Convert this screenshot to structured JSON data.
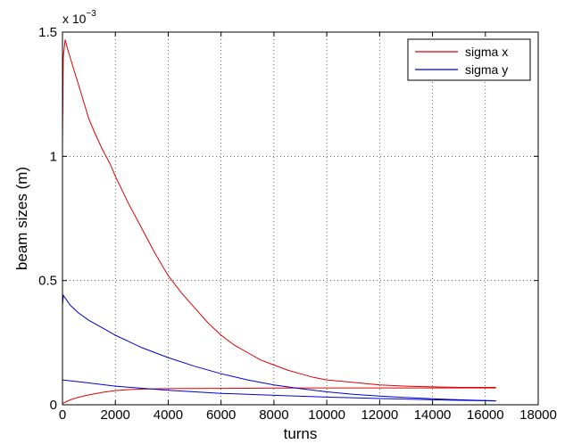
{
  "chart_data": {
    "type": "line",
    "xlabel": "turns",
    "ylabel": "beam sizes (m)",
    "y_exponent_label": "x 10",
    "y_exponent_power": "−3",
    "xlim": [
      0,
      18000
    ],
    "ylim": [
      0,
      1.5
    ],
    "x_ticks": [
      0,
      2000,
      4000,
      6000,
      8000,
      10000,
      12000,
      14000,
      16000,
      18000
    ],
    "x_tick_labels": [
      "0",
      "2000",
      "4000",
      "6000",
      "8000",
      "10000",
      "12000",
      "14000",
      "16000",
      "18000"
    ],
    "y_ticks": [
      0,
      0.5,
      1,
      1.5
    ],
    "y_tick_labels": [
      "0",
      "0.5",
      "1",
      "1.5"
    ],
    "grid": true,
    "legend_position": "top-right",
    "legend": [
      "sigma x",
      "sigma y"
    ],
    "series": [
      {
        "name": "sigma x",
        "color": "#e00000",
        "x": [
          0,
          30,
          100,
          200,
          400,
          600,
          800,
          1000,
          1200,
          1500,
          1800,
          2000,
          2500,
          3000,
          3500,
          4000,
          4500,
          5000,
          5500,
          6000,
          6500,
          7000,
          7500,
          8000,
          8500,
          9000,
          9500,
          10000,
          11000,
          12000,
          13000,
          14000,
          15000,
          16000,
          16400
        ],
        "y": [
          1.05,
          1.4,
          1.47,
          1.43,
          1.36,
          1.29,
          1.22,
          1.15,
          1.1,
          1.03,
          0.97,
          0.92,
          0.81,
          0.71,
          0.61,
          0.52,
          0.45,
          0.39,
          0.33,
          0.28,
          0.24,
          0.21,
          0.18,
          0.16,
          0.14,
          0.125,
          0.11,
          0.1,
          0.09,
          0.08,
          0.075,
          0.072,
          0.07,
          0.07,
          0.07
        ]
      },
      {
        "name": "sigma x",
        "color": "#e00000",
        "x": [
          0,
          300,
          600,
          1000,
          1500,
          2000,
          2500,
          3000,
          4000,
          6000,
          8000,
          10000,
          12000,
          14000,
          16400
        ],
        "y": [
          0.005,
          0.02,
          0.03,
          0.04,
          0.05,
          0.057,
          0.061,
          0.063,
          0.065,
          0.066,
          0.067,
          0.068,
          0.068,
          0.068,
          0.068
        ]
      },
      {
        "name": "sigma y",
        "color": "#0000d8",
        "x": [
          0,
          30,
          100,
          300,
          600,
          1000,
          1500,
          2000,
          2500,
          3000,
          3500,
          4000,
          5000,
          6000,
          7000,
          8000,
          9000,
          10000,
          11000,
          12000,
          13000,
          14000,
          15000,
          16000,
          16400
        ],
        "y": [
          0.4,
          0.44,
          0.43,
          0.4,
          0.37,
          0.34,
          0.31,
          0.28,
          0.255,
          0.23,
          0.21,
          0.19,
          0.155,
          0.125,
          0.1,
          0.08,
          0.065,
          0.052,
          0.042,
          0.035,
          0.029,
          0.024,
          0.02,
          0.017,
          0.016
        ]
      },
      {
        "name": "sigma y",
        "color": "#0000d8",
        "x": [
          0,
          1000,
          2000,
          4000,
          6000,
          8000,
          10000,
          12000,
          14000,
          16000,
          16400
        ],
        "y": [
          0.1,
          0.088,
          0.075,
          0.058,
          0.046,
          0.038,
          0.031,
          0.025,
          0.02,
          0.016,
          0.015
        ]
      }
    ]
  }
}
